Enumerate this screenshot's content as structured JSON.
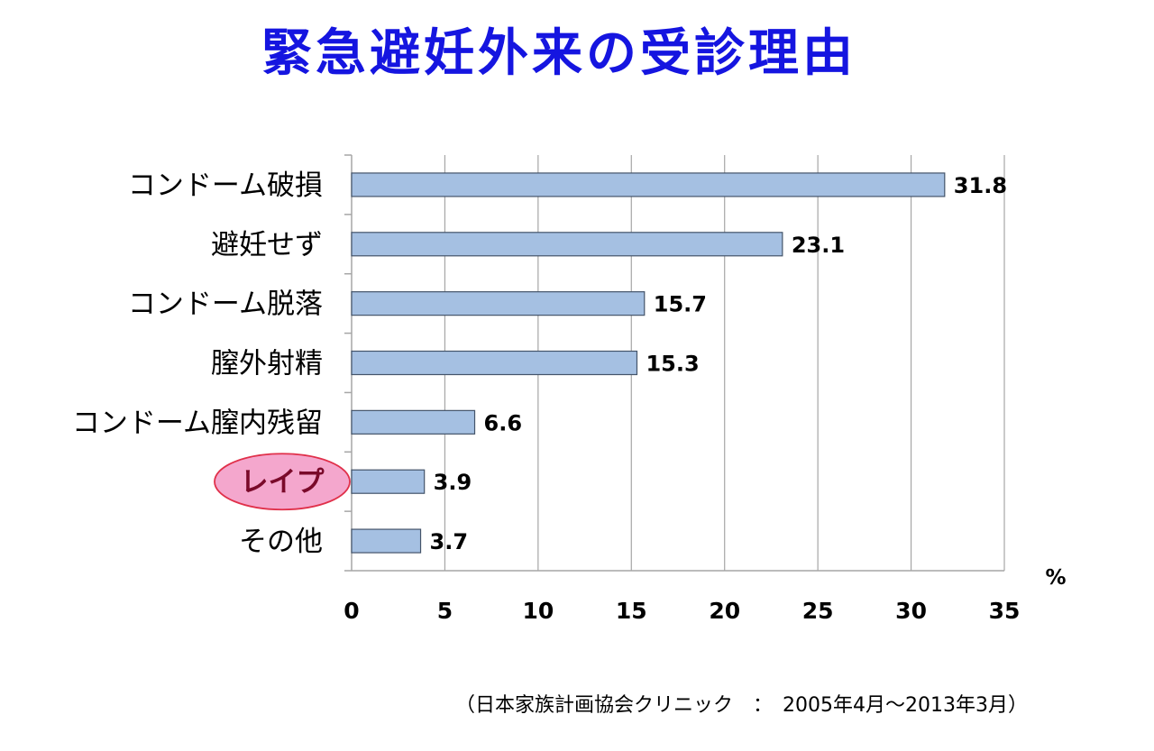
{
  "title": "緊急避妊外来の受診理由",
  "source": "（日本家族計画協会クリニック　：　2005年4月～2013年3月）",
  "colors": {
    "title": "#1515e0",
    "bar_fill": "#a5c0e2",
    "bar_stroke": "#44546a",
    "grid": "#a6a6a6",
    "highlight_fill": "#f4a7cd",
    "highlight_stroke": "#e0304a",
    "highlight_text": "#7a0a2a"
  },
  "chart_data": {
    "type": "bar",
    "orientation": "horizontal",
    "categories": [
      "コンドーム破損",
      "避妊せず",
      "コンドーム脱落",
      "膣外射精",
      "コンドーム膣内残留",
      "レイプ",
      "その他"
    ],
    "values": [
      31.8,
      23.1,
      15.7,
      15.3,
      6.6,
      3.9,
      3.7
    ],
    "value_labels": [
      "31.8",
      "23.1",
      "15.7",
      "15.3",
      "6.6",
      "3.9",
      "3.7"
    ],
    "xlim": [
      0,
      35
    ],
    "xticks": [
      "0",
      "5",
      "10",
      "15",
      "20",
      "25",
      "30",
      "35"
    ],
    "xunit": "%",
    "grid": true,
    "highlighted_category": "レイプ"
  }
}
